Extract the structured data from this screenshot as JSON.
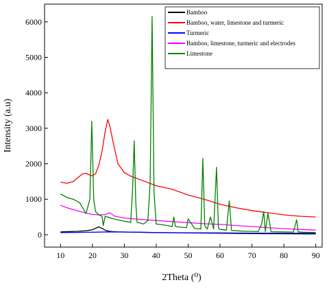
{
  "chart_data": {
    "type": "line",
    "title": "",
    "xlabel": "2Theta (⁰)",
    "ylabel": "Intensity (a.u)",
    "xlim": [
      5,
      92
    ],
    "ylim": [
      -350,
      6500
    ],
    "x_ticks": [
      "10",
      "20",
      "30",
      "40",
      "50",
      "60",
      "70",
      "80",
      "90"
    ],
    "y_ticks": [
      "0",
      "1000",
      "2000",
      "3000",
      "4000",
      "5000",
      "6000"
    ],
    "grid": false,
    "legend_position": "top-right",
    "series": [
      {
        "name": "Bamboo",
        "color": "#000000",
        "x": [
          10,
          15,
          18,
          20,
          21,
          22,
          23,
          24,
          25,
          26,
          28,
          30,
          35,
          40,
          50,
          60,
          70,
          80,
          90
        ],
        "y": [
          80,
          95,
          110,
          140,
          180,
          220,
          180,
          130,
          100,
          90,
          80,
          75,
          70,
          60,
          55,
          50,
          45,
          40,
          40
        ]
      },
      {
        "name": "Bamboo, water, limestone and turmeric",
        "color": "#ff0000",
        "x": [
          10,
          12,
          14,
          16,
          17,
          18,
          19,
          20,
          21,
          22,
          23,
          24,
          24.8,
          25.5,
          26.5,
          28,
          30,
          32,
          35,
          38,
          40,
          45,
          50,
          55,
          60,
          65,
          70,
          75,
          80,
          85,
          90
        ],
        "y": [
          1480,
          1450,
          1500,
          1650,
          1720,
          1730,
          1690,
          1660,
          1720,
          1950,
          2350,
          2900,
          3250,
          3050,
          2600,
          2000,
          1750,
          1650,
          1550,
          1450,
          1380,
          1280,
          1120,
          1000,
          860,
          760,
          680,
          620,
          560,
          520,
          500
        ]
      },
      {
        "name": "Turmeric",
        "color": "#0000ff",
        "x": [
          10,
          15,
          20,
          25,
          30,
          40,
          50,
          60,
          70,
          80,
          90
        ],
        "y": [
          60,
          65,
          70,
          80,
          75,
          60,
          50,
          40,
          30,
          25,
          20
        ]
      },
      {
        "name": "Bamboo, limestone, turmeric and electrodes",
        "color": "#ff00ff",
        "x": [
          10,
          12,
          15,
          18,
          20,
          22,
          24,
          25.5,
          27,
          30,
          35,
          40,
          45,
          50,
          55,
          60,
          65,
          70,
          75,
          80,
          85,
          90
        ],
        "y": [
          830,
          760,
          680,
          610,
          570,
          560,
          570,
          620,
          520,
          470,
          430,
          400,
          370,
          340,
          310,
          290,
          260,
          230,
          200,
          170,
          150,
          130
        ]
      },
      {
        "name": "Limestone",
        "color": "#008000",
        "x": [
          10,
          12,
          14,
          16,
          18,
          19.2,
          19.8,
          20.4,
          21,
          22,
          23,
          23.4,
          24,
          26,
          28,
          30,
          32,
          32.6,
          33.1,
          33.6,
          34,
          35,
          36,
          37.4,
          38.1,
          38.7,
          39.3,
          40,
          42,
          44,
          45,
          45.5,
          46,
          48,
          49.5,
          50,
          52,
          54,
          54.6,
          55.2,
          56,
          57,
          58,
          58.9,
          59.5,
          60,
          62,
          62.9,
          63.6,
          65,
          67,
          70,
          72,
          73,
          73.7,
          74.2,
          75,
          76,
          80,
          83,
          84,
          84.5,
          86,
          90
        ],
        "y": [
          1150,
          1050,
          1000,
          900,
          600,
          1000,
          3200,
          1000,
          650,
          560,
          520,
          260,
          520,
          460,
          420,
          380,
          350,
          1300,
          2650,
          900,
          350,
          330,
          300,
          400,
          1500,
          6150,
          1200,
          300,
          280,
          250,
          230,
          500,
          230,
          210,
          200,
          450,
          180,
          160,
          2150,
          250,
          160,
          500,
          160,
          1900,
          180,
          150,
          130,
          950,
          120,
          110,
          100,
          95,
          90,
          300,
          650,
          90,
          600,
          85,
          80,
          75,
          420,
          80,
          70,
          60
        ]
      }
    ]
  }
}
